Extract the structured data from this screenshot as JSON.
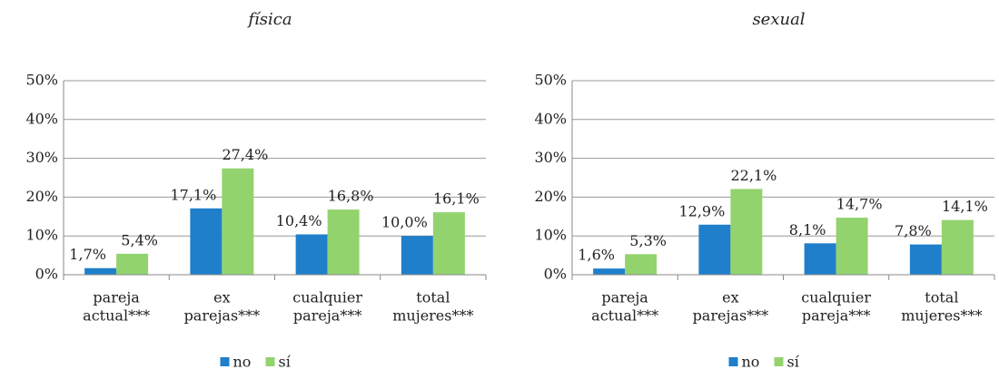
{
  "chart_data": [
    {
      "type": "bar",
      "title": "física",
      "categories": [
        [
          "pareja",
          "actual***"
        ],
        [
          "ex",
          "parejas***"
        ],
        [
          "cualquier",
          "pareja***"
        ],
        [
          "total",
          "mujeres***"
        ]
      ],
      "series": [
        {
          "name": "no",
          "color": "#1f7fcb",
          "values": [
            1.7,
            17.1,
            10.4,
            10.0
          ],
          "value_labels": [
            "1,7%",
            "17,1%",
            "10,4%",
            "10,0%"
          ]
        },
        {
          "name": "sí",
          "color": "#92d36e",
          "values": [
            5.4,
            27.4,
            16.8,
            16.1
          ],
          "value_labels": [
            "5,4%",
            "27,4%",
            "16,8%",
            "16,1%"
          ]
        }
      ],
      "ylim": [
        0,
        50
      ],
      "yticks": [
        {
          "value": 0,
          "label": "0%"
        },
        {
          "value": 10,
          "label": "10%"
        },
        {
          "value": 20,
          "label": "20%"
        },
        {
          "value": 30,
          "label": "30%"
        },
        {
          "value": 40,
          "label": "40%"
        },
        {
          "value": 50,
          "label": "50%"
        }
      ],
      "grid": true,
      "legend": "bottom"
    },
    {
      "type": "bar",
      "title": "sexual",
      "categories": [
        [
          "pareja",
          "actual***"
        ],
        [
          "ex",
          "parejas***"
        ],
        [
          "cualquier",
          "pareja***"
        ],
        [
          "total",
          "mujeres***"
        ]
      ],
      "series": [
        {
          "name": "no",
          "color": "#1f7fcb",
          "values": [
            1.6,
            12.9,
            8.1,
            7.8
          ],
          "value_labels": [
            "1,6%",
            "12,9%",
            "8,1%",
            "7,8%"
          ]
        },
        {
          "name": "sí",
          "color": "#92d36e",
          "values": [
            5.3,
            22.1,
            14.7,
            14.1
          ],
          "value_labels": [
            "5,3%",
            "22,1%",
            "14,7%",
            "14,1%"
          ]
        }
      ],
      "ylim": [
        0,
        50
      ],
      "yticks": [
        {
          "value": 0,
          "label": "0%"
        },
        {
          "value": 10,
          "label": "10%"
        },
        {
          "value": 20,
          "label": "20%"
        },
        {
          "value": 30,
          "label": "30%"
        },
        {
          "value": 40,
          "label": "40%"
        },
        {
          "value": 50,
          "label": "50%"
        }
      ],
      "grid": true,
      "legend": "bottom"
    }
  ]
}
